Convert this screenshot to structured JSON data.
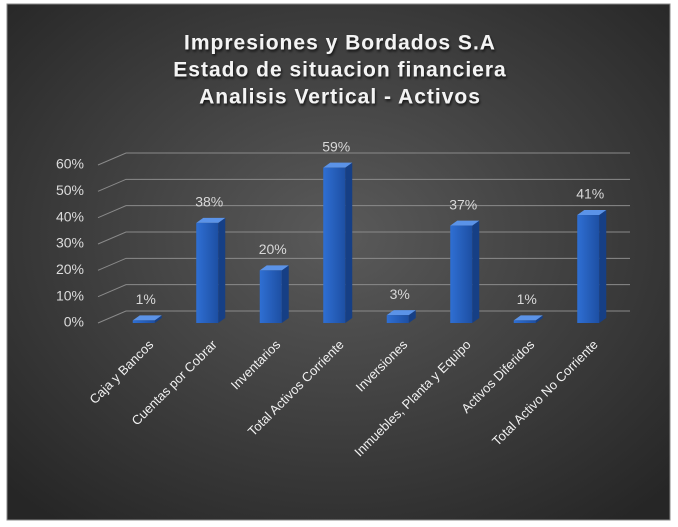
{
  "chart_data": {
    "type": "bar3d",
    "title": [
      "Impresiones y Bordados S.A",
      "Estado de situacion financiera",
      "Analisis Vertical - Activos"
    ],
    "categories": [
      "Caja y Bancos",
      "Cuentas por Cobrar",
      "Inventarios",
      "Total Activos Corriente",
      "Inversiones",
      "Inmuebles, Planta y Equipo",
      "Activos Diferidos",
      "Total Activo No Corriente"
    ],
    "values": [
      1,
      38,
      20,
      59,
      3,
      37,
      1,
      41
    ],
    "value_labels": [
      "1%",
      "38%",
      "20%",
      "59%",
      "3%",
      "37%",
      "1%",
      "41%"
    ],
    "color": "#2f6fd3",
    "ylim": [
      0,
      60
    ],
    "yticks": [
      {
        "value": 0,
        "label": "0%"
      },
      {
        "value": 10,
        "label": "10%"
      },
      {
        "value": 20,
        "label": "20%"
      },
      {
        "value": 30,
        "label": "30%"
      },
      {
        "value": 40,
        "label": "40%"
      },
      {
        "value": 50,
        "label": "50%"
      },
      {
        "value": 60,
        "label": "60%"
      }
    ],
    "grid": true
  }
}
